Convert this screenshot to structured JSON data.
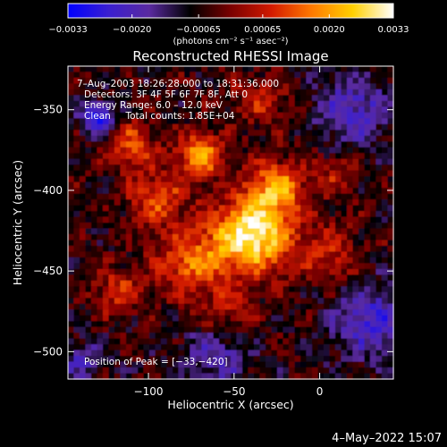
{
  "chart_data": {
    "type": "heatmap",
    "title": "Reconstructed RHESSI Image",
    "xlabel": "Heliocentric X (arcsec)",
    "ylabel": "Heliocentric Y (arcsec)",
    "xlim": [
      -147,
      43
    ],
    "ylim": [
      -517,
      -323
    ],
    "x_ticks": [
      {
        "value": -100,
        "label": "−100"
      },
      {
        "value": -50,
        "label": "−50"
      },
      {
        "value": 0,
        "label": "0"
      }
    ],
    "y_ticks": [
      {
        "value": -350,
        "label": "−350"
      },
      {
        "value": -400,
        "label": "−400"
      },
      {
        "value": -450,
        "label": "−450"
      },
      {
        "value": -500,
        "label": "−500"
      }
    ],
    "colorbar": {
      "range": [
        -0.0033,
        0.0033
      ],
      "ticks": [
        {
          "value": -0.0033,
          "label": "−0.0033"
        },
        {
          "value": -0.002,
          "label": "−0.0020"
        },
        {
          "value": -0.00065,
          "label": "−0.00065"
        },
        {
          "value": 0.00065,
          "label": "0.00065"
        },
        {
          "value": 0.002,
          "label": "0.0020"
        },
        {
          "value": 0.0033,
          "label": "0.0033"
        }
      ],
      "unit_label": "(photons cm⁻² s⁻¹ asec⁻²)",
      "colormap": [
        "#0000ff",
        "#3a1fd0",
        "#5a2aa0",
        "#000000",
        "#7a0000",
        "#d21a00",
        "#ff7a00",
        "#ffd000",
        "#ffffff"
      ]
    },
    "info_lines": [
      "7–Aug–2003 18:26:28.000 to 18:31:36.000",
      "Detectors: 3F 4F 5F 6F 7F 8F, Att 0",
      "Energy Range: 6.0 – 12.0 keV",
      "Clean     Total counts: 1.85E+04"
    ],
    "peak_annotation": "Position of Peak = [−33,−420]",
    "peak": {
      "x": -33,
      "y": -420
    },
    "sources": [
      {
        "x": -40,
        "y": -428,
        "sigma": 16,
        "amp": 0.0038
      },
      {
        "x": -70,
        "y": -378,
        "sigma": 9,
        "amp": 0.0028
      },
      {
        "x": -25,
        "y": -398,
        "sigma": 12,
        "amp": 0.0024
      },
      {
        "x": -95,
        "y": -405,
        "sigma": 12,
        "amp": 0.0018
      },
      {
        "x": -110,
        "y": -372,
        "sigma": 10,
        "amp": 0.0017
      },
      {
        "x": -75,
        "y": -445,
        "sigma": 14,
        "amp": 0.002
      },
      {
        "x": -118,
        "y": -462,
        "sigma": 10,
        "amp": 0.0014
      },
      {
        "x": -55,
        "y": -478,
        "sigma": 11,
        "amp": 0.0013
      },
      {
        "x": 5,
        "y": -440,
        "sigma": 13,
        "amp": 0.0013
      },
      {
        "x": 10,
        "y": -390,
        "sigma": 9,
        "amp": 0.001
      },
      {
        "x": -35,
        "y": -345,
        "sigma": 12,
        "amp": 0.0011
      },
      {
        "x": -130,
        "y": -355,
        "sigma": 7,
        "amp": -0.0022
      },
      {
        "x": -60,
        "y": -500,
        "sigma": 14,
        "amp": -0.0014
      },
      {
        "x": 20,
        "y": -350,
        "sigma": 15,
        "amp": -0.0016
      },
      {
        "x": 30,
        "y": -480,
        "sigma": 16,
        "amp": -0.0017
      },
      {
        "x": -138,
        "y": -505,
        "sigma": 9,
        "amp": -0.0012
      }
    ]
  },
  "footer": {
    "timestamp": "4–May–2022 15:07"
  }
}
